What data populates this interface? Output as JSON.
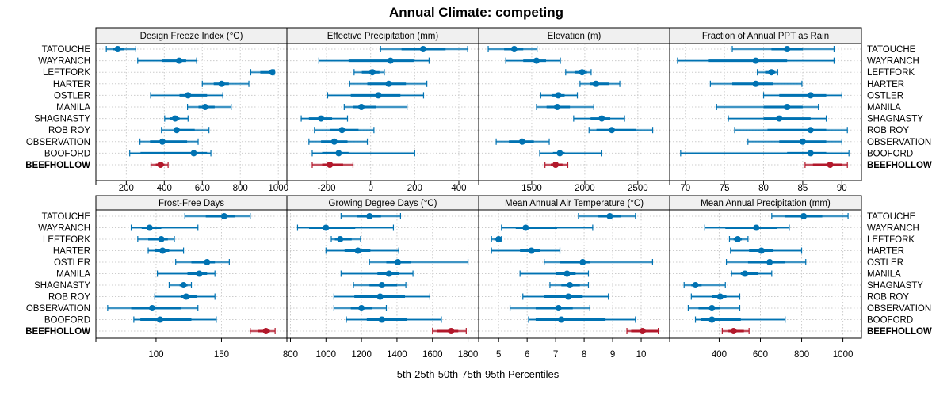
{
  "chart_data": {
    "type": "dotplot-percentiles",
    "title": "Annual Climate: competing",
    "xlabel": "5th-25th-50th-75th-95th Percentiles",
    "ylabel": "",
    "grid": true,
    "legend": "none",
    "colors": {
      "competing": "#0072b2",
      "focal": "#b2182b",
      "strip_bg": "#f0f0f0",
      "grid": "#cccccc",
      "frame": "#000000"
    },
    "sites": [
      "TATOUCHE",
      "WAYRANCH",
      "LEFTFORK",
      "HARTER",
      "OSTLER",
      "MANILA",
      "SHAGNASTY",
      "ROB ROY",
      "OBSERVATION",
      "BOOFORD",
      "BEEFHOLLOW"
    ],
    "focal_site": "BEEFHOLLOW",
    "percentile_labels": [
      "5th",
      "25th",
      "50th",
      "75th",
      "95th"
    ],
    "panels": [
      {
        "title": "Design Freeze Index (°C)",
        "xlim": [
          40,
          1045
        ],
        "ticks": [
          200,
          400,
          600,
          800,
          1000
        ],
        "tick_side": "bottom",
        "values": [
          [
            95,
            130,
            155,
            190,
            250
          ],
          [
            260,
            390,
            478,
            515,
            570
          ],
          [
            855,
            905,
            968,
            975,
            978
          ],
          [
            600,
            660,
            702,
            740,
            845
          ],
          [
            328,
            480,
            525,
            625,
            708
          ],
          [
            522,
            580,
            615,
            665,
            752
          ],
          [
            402,
            430,
            457,
            480,
            525
          ],
          [
            385,
            455,
            465,
            560,
            635
          ],
          [
            272,
            325,
            390,
            520,
            578
          ],
          [
            218,
            275,
            555,
            625,
            645
          ],
          [
            330,
            355,
            380,
            400,
            420
          ]
        ]
      },
      {
        "title": "Effective Precipitation (mm)",
        "xlim": [
          -380,
          490
        ],
        "ticks": [
          -200,
          0,
          200,
          400
        ],
        "tick_side": "bottom",
        "values": [
          [
            45,
            140,
            238,
            340,
            440
          ],
          [
            -235,
            -100,
            90,
            195,
            265
          ],
          [
            -75,
            -40,
            8,
            40,
            62
          ],
          [
            -95,
            -15,
            82,
            160,
            255
          ],
          [
            -195,
            -90,
            35,
            135,
            240
          ],
          [
            -120,
            -80,
            -42,
            25,
            165
          ],
          [
            -315,
            -280,
            -225,
            -175,
            -105
          ],
          [
            -255,
            -185,
            -130,
            -55,
            15
          ],
          [
            -280,
            -225,
            -165,
            -105,
            -15
          ],
          [
            -265,
            -220,
            -145,
            -100,
            200
          ],
          [
            -265,
            -220,
            -185,
            -125,
            -80
          ]
        ]
      },
      {
        "title": "Elevation (m)",
        "xlim": [
          1000,
          2800
        ],
        "ticks": [
          1500,
          2000,
          2500
        ],
        "tick_side": "bottom",
        "values": [
          [
            1090,
            1240,
            1335,
            1420,
            1550
          ],
          [
            1255,
            1420,
            1545,
            1635,
            1770
          ],
          [
            1820,
            1910,
            1975,
            2020,
            2060
          ],
          [
            1955,
            2050,
            2105,
            2230,
            2330
          ],
          [
            1585,
            1690,
            1750,
            1810,
            1930
          ],
          [
            1545,
            1640,
            1740,
            1860,
            2085
          ],
          [
            1895,
            2055,
            2160,
            2240,
            2375
          ],
          [
            2040,
            2110,
            2255,
            2480,
            2640
          ],
          [
            1165,
            1285,
            1410,
            1520,
            1665
          ],
          [
            1575,
            1700,
            1765,
            1810,
            2155
          ],
          [
            1625,
            1680,
            1725,
            1790,
            1840
          ]
        ]
      },
      {
        "title": "Fraction of Annual PPT as Rain",
        "xlim": [
          68,
          92.5
        ],
        "ticks": [
          70,
          75,
          80,
          85,
          90
        ],
        "tick_side": "bottom",
        "values": [
          [
            76,
            81,
            83,
            85,
            89
          ],
          [
            69,
            73,
            79,
            83,
            89
          ],
          [
            79.2,
            80.2,
            81,
            81.5,
            81.8
          ],
          [
            73.2,
            76,
            79,
            81.2,
            84.9
          ],
          [
            80,
            82,
            86,
            88,
            90
          ],
          [
            74,
            80,
            83,
            85,
            87
          ],
          [
            75.5,
            80,
            82,
            86,
            88
          ],
          [
            76.3,
            80.5,
            86,
            88,
            90.7
          ],
          [
            78,
            82,
            85,
            88,
            90
          ],
          [
            69.4,
            83,
            86,
            88,
            90.9
          ],
          [
            85.3,
            86.3,
            88.5,
            90,
            90.7
          ]
        ]
      },
      {
        "title": "Frost-Free Days",
        "xlim": [
          54,
          200
        ],
        "ticks": [
          100,
          150
        ],
        "tick_side": "bottom",
        "values": [
          [
            122,
            138,
            152,
            160,
            172
          ],
          [
            81,
            89,
            95,
            104,
            132
          ],
          [
            86,
            94,
            104,
            109,
            114
          ],
          [
            94,
            99,
            105,
            110,
            121
          ],
          [
            115,
            127,
            139,
            145,
            156
          ],
          [
            101,
            124,
            133,
            139,
            145
          ],
          [
            110,
            118,
            121,
            124,
            127
          ],
          [
            99,
            119,
            123,
            131,
            145
          ],
          [
            63,
            81,
            97,
            119,
            132
          ],
          [
            83,
            88,
            103,
            127,
            146
          ],
          [
            172,
            178,
            184,
            187,
            191
          ]
        ]
      },
      {
        "title": "Growing Degree Days (°C)",
        "xlim": [
          780,
          1860
        ],
        "ticks": [
          800,
          1000,
          1200,
          1400,
          1600,
          1800
        ],
        "tick_side": "bottom",
        "values": [
          [
            1085,
            1175,
            1245,
            1310,
            1420
          ],
          [
            840,
            905,
            1000,
            1165,
            1380
          ],
          [
            1030,
            1050,
            1080,
            1145,
            1195
          ],
          [
            1000,
            1105,
            1180,
            1250,
            1410
          ],
          [
            1245,
            1340,
            1405,
            1480,
            1800
          ],
          [
            1085,
            1290,
            1355,
            1410,
            1490
          ],
          [
            1155,
            1245,
            1315,
            1400,
            1450
          ],
          [
            1045,
            1160,
            1305,
            1445,
            1585
          ],
          [
            1045,
            1140,
            1200,
            1260,
            1340
          ],
          [
            1115,
            1230,
            1315,
            1455,
            1650
          ],
          [
            1600,
            1625,
            1705,
            1745,
            1790
          ]
        ]
      },
      {
        "title": "Mean Annual Air Temperature (°C)",
        "xlim": [
          4.3,
          11.0
        ],
        "ticks": [
          5,
          6,
          7,
          8,
          9,
          10
        ],
        "tick_side": "bottom",
        "values": [
          [
            7.8,
            8.5,
            8.9,
            9.3,
            9.8
          ],
          [
            5.1,
            5.6,
            5.95,
            7.05,
            8.3
          ],
          [
            4.75,
            4.85,
            5.0,
            5.05,
            5.1
          ],
          [
            4.75,
            5.75,
            6.15,
            6.45,
            7.15
          ],
          [
            6.6,
            7.15,
            7.95,
            8.2,
            10.4
          ],
          [
            5.75,
            7.0,
            7.4,
            7.7,
            8.15
          ],
          [
            6.8,
            7.2,
            7.5,
            7.85,
            8.15
          ],
          [
            5.85,
            6.6,
            7.45,
            7.95,
            8.85
          ],
          [
            5.4,
            6.3,
            7.1,
            7.6,
            8.2
          ],
          [
            6.05,
            6.3,
            7.2,
            8.75,
            9.8
          ],
          [
            9.5,
            9.65,
            10.05,
            10.6,
            10.6
          ]
        ]
      },
      {
        "title": "Mean Annual Precipitation (mm)",
        "xlim": [
          160,
          1090
        ],
        "ticks": [
          400,
          600,
          800,
          1000
        ],
        "tick_side": "bottom",
        "values": [
          [
            655,
            720,
            810,
            900,
            1025
          ],
          [
            330,
            430,
            580,
            680,
            740
          ],
          [
            450,
            470,
            490,
            510,
            540
          ],
          [
            455,
            545,
            605,
            660,
            800
          ],
          [
            435,
            540,
            645,
            720,
            820
          ],
          [
            460,
            505,
            525,
            590,
            655
          ],
          [
            230,
            265,
            285,
            315,
            430
          ],
          [
            265,
            365,
            405,
            435,
            500
          ],
          [
            250,
            300,
            365,
            405,
            500
          ],
          [
            285,
            310,
            365,
            505,
            720
          ],
          [
            415,
            445,
            470,
            520,
            545
          ]
        ]
      }
    ]
  }
}
